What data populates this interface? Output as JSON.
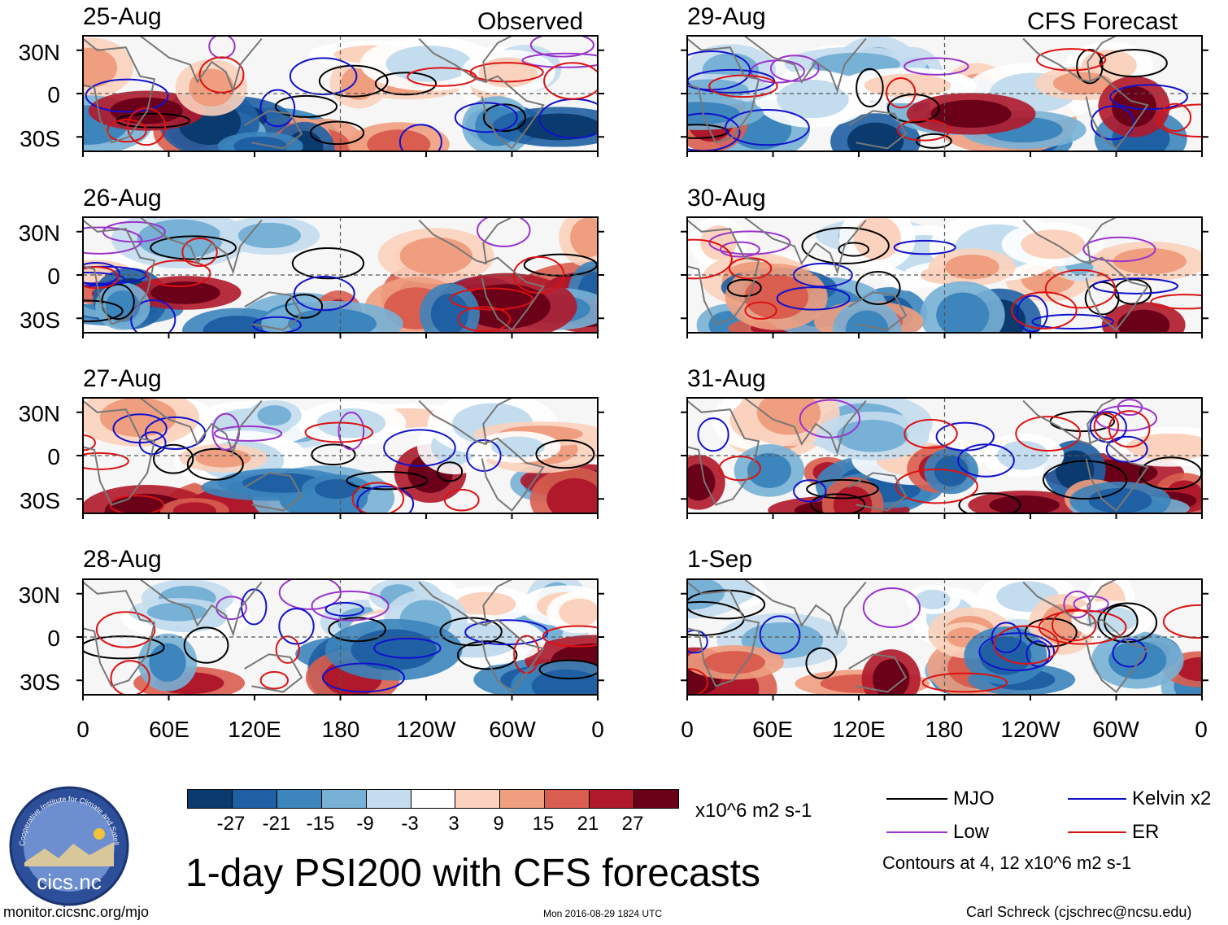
{
  "figure": {
    "title": "1-day PSI200 with CFS forecasts",
    "observed_label": "Observed",
    "forecast_label": "CFS Forecast",
    "website": "monitor.cicsnc.org/mjo",
    "timestamp": "Mon 2016-08-29 1824 UTC",
    "author": "Carl Schreck (cjschrec@ncsu.edu)",
    "logo_text": "cics.nc",
    "logo_ring_text": "Cooperative Institute for Climate and Satellites"
  },
  "chart_data": {
    "type": "heatmap",
    "variable": "200-hPa streamfunction anomaly (PSI200)",
    "units": "x10^6 m2 s-1",
    "panels": [
      {
        "date": "25-Aug",
        "column": "Observed"
      },
      {
        "date": "26-Aug",
        "column": "Observed"
      },
      {
        "date": "27-Aug",
        "column": "Observed"
      },
      {
        "date": "28-Aug",
        "column": "Observed"
      },
      {
        "date": "29-Aug",
        "column": "CFS Forecast"
      },
      {
        "date": "30-Aug",
        "column": "CFS Forecast"
      },
      {
        "date": "31-Aug",
        "column": "CFS Forecast"
      },
      {
        "date": "1-Sep",
        "column": "CFS Forecast"
      }
    ],
    "lat_ticks": [
      "30N",
      "0",
      "30S"
    ],
    "lat_values": [
      30,
      0,
      -30
    ],
    "lat_range": [
      -40,
      40
    ],
    "lon_ticks": [
      "0",
      "60E",
      "120E",
      "180",
      "120W",
      "60W",
      "0"
    ],
    "lon_values": [
      0,
      60,
      120,
      180,
      240,
      300,
      360
    ],
    "lon_range": [
      0,
      360
    ],
    "colorbar": {
      "levels": [
        -27,
        -21,
        -15,
        -9,
        -3,
        3,
        9,
        15,
        21,
        27
      ],
      "tick_labels": [
        "-27",
        "-21",
        "-15",
        "-9",
        "-3",
        "3",
        "9",
        "15",
        "21",
        "27"
      ],
      "colors": [
        "#0b3a6e",
        "#1f60a4",
        "#3c85bd",
        "#78b1d6",
        "#c4ddee",
        "#ffffff",
        "#fbd2bd",
        "#ef9f80",
        "#d95e4f",
        "#b0192b",
        "#6b0019"
      ]
    },
    "contour_legend": [
      {
        "name": "MJO",
        "color": "#000000"
      },
      {
        "name": "Low",
        "color": "#9933cc"
      },
      {
        "name": "Kelvin x2",
        "color": "#1111cc"
      },
      {
        "name": "ER",
        "color": "#dd1111"
      }
    ],
    "contour_note": "Contours at 4, 12 x10^6 m2 s-1"
  }
}
